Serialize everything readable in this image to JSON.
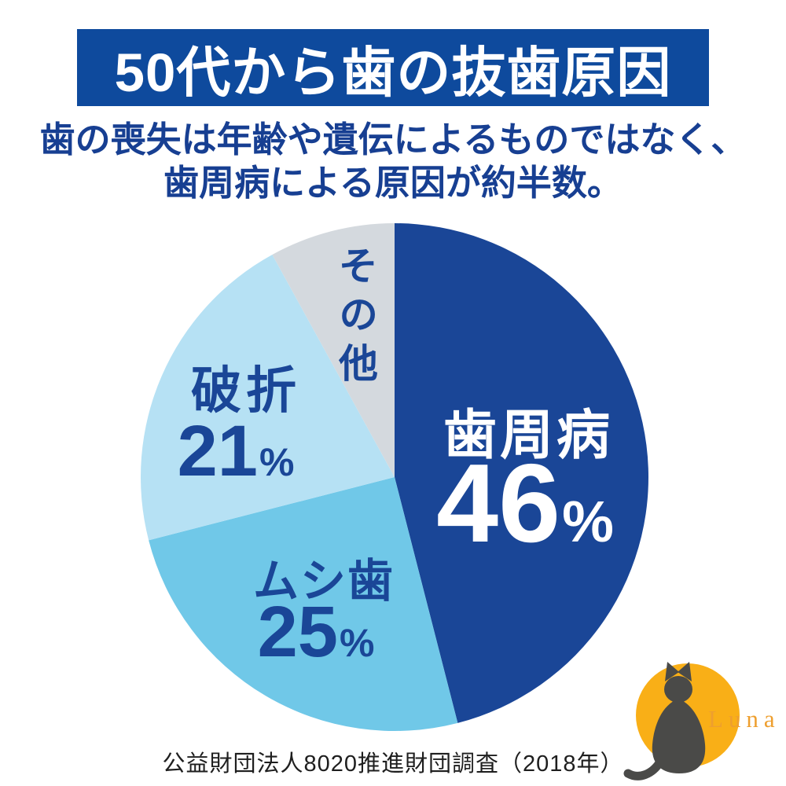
{
  "header": {
    "title": "50代から歯の抜歯原因",
    "bg_color": "#0e4a9d",
    "text_color": "#ffffff"
  },
  "subtitle": {
    "line1": "歯の喪失は年齢や遺伝によるものではなく、",
    "line2": "歯周病による原因が約半数。",
    "text_color": "#173f92"
  },
  "chart_data": {
    "type": "pie",
    "title": "50代から歯の抜歯原因",
    "start_angle_deg": 0,
    "direction": "clockwise",
    "legend_position": "inside",
    "percent_sign": "%",
    "slices": [
      {
        "label": "歯周病",
        "value": 46,
        "value_text": "46",
        "color": "#1a4697",
        "text_color": "#ffffff"
      },
      {
        "label": "ムシ歯",
        "value": 25,
        "value_text": "25",
        "color": "#70c8e8",
        "text_color": "#1a4697"
      },
      {
        "label": "破折",
        "value": 21,
        "value_text": "21",
        "color": "#b6e1f4",
        "text_color": "#1a4697"
      },
      {
        "label": "その他",
        "value": 8,
        "value_text": "",
        "color": "#d4d9de",
        "text_color": "#1a4697"
      }
    ]
  },
  "footer": {
    "source": "公益財団法人8020推進財団調査（2018年）",
    "text_color": "#1e1e1e"
  },
  "logo": {
    "brand": "Luna",
    "moon_color": "#f9af17",
    "cat_color": "#4a4a48",
    "text_color": "#ee9f2f"
  }
}
